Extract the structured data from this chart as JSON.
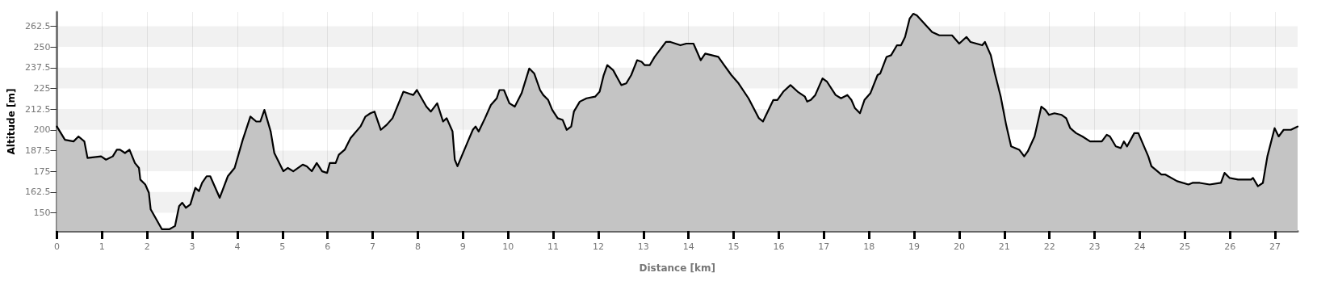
{
  "chart_data": {
    "type": "area",
    "xlabel": "Distance [km]",
    "ylabel": "Altitude [m]",
    "color": "#000000",
    "x": [
      0,
      0.18,
      0.37,
      0.48,
      0.61,
      0.68,
      0.98,
      1.09,
      1.24,
      1.33,
      1.4,
      1.51,
      1.61,
      1.73,
      1.82,
      1.85,
      1.96,
      2.04,
      2.08,
      2.33,
      2.49,
      2.62,
      2.71,
      2.78,
      2.86,
      2.96,
      3.07,
      3.15,
      3.22,
      3.32,
      3.4,
      3.61,
      3.79,
      3.94,
      4.12,
      4.29,
      4.42,
      4.51,
      4.6,
      4.74,
      4.82,
      5.02,
      5.12,
      5.24,
      5.45,
      5.54,
      5.65,
      5.76,
      5.88,
      5.99,
      6.05,
      6.18,
      6.25,
      6.38,
      6.51,
      6.73,
      6.84,
      6.95,
      7.04,
      7.18,
      7.31,
      7.44,
      7.53,
      7.68,
      7.9,
      7.98,
      8.19,
      8.29,
      8.43,
      8.56,
      8.64,
      8.77,
      8.82,
      8.88,
      9.11,
      9.22,
      9.28,
      9.35,
      9.49,
      9.62,
      9.75,
      9.81,
      9.91,
      10.03,
      10.15,
      10.3,
      10.47,
      10.58,
      10.71,
      10.78,
      10.89,
      10.98,
      11.1,
      11.21,
      11.3,
      11.4,
      11.46,
      11.59,
      11.74,
      11.93,
      12.03,
      12.12,
      12.2,
      12.33,
      12.51,
      12.62,
      12.73,
      12.86,
      12.96,
      13.03,
      13.14,
      13.25,
      13.5,
      13.6,
      13.82,
      13.95,
      14.11,
      14.27,
      14.37,
      14.66,
      14.79,
      14.95,
      15.11,
      15.33,
      15.56,
      15.65,
      15.88,
      15.97,
      16.1,
      16.26,
      16.42,
      16.58,
      16.63,
      16.71,
      16.81,
      16.97,
      17.07,
      17.26,
      17.38,
      17.52,
      17.61,
      17.69,
      17.8,
      17.9,
      18.03,
      18.19,
      18.25,
      18.39,
      18.49,
      18.62,
      18.71,
      18.8,
      18.9,
      18.98,
      19.06,
      19.4,
      19.56,
      19.84,
      20,
      20.16,
      20.25,
      20.51,
      20.57,
      20.7,
      20.79,
      20.92,
      21.04,
      21.15,
      21.33,
      21.44,
      21.52,
      21.67,
      21.82,
      21.91,
      21.99,
      22.11,
      22.27,
      22.37,
      22.46,
      22.59,
      22.73,
      22.9,
      23.09,
      23.16,
      23.27,
      23.34,
      23.47,
      23.58,
      23.65,
      23.72,
      23.88,
      23.97,
      24.19,
      24.26,
      24.48,
      24.57,
      24.83,
      25.08,
      25.17,
      25.33,
      25.55,
      25.8,
      25.88,
      25.99,
      26.18,
      26.47,
      26.51,
      26.62,
      26.73,
      26.83,
      26.99,
      27.08,
      27.19,
      27.35,
      27.5
    ],
    "values": [
      202,
      194,
      193,
      196,
      193,
      183,
      184,
      182,
      184,
      188,
      188,
      186,
      188,
      180,
      177,
      170,
      167,
      162,
      152,
      140,
      140,
      142,
      154,
      156,
      153,
      155,
      165,
      163,
      168,
      172,
      172,
      159,
      172,
      177,
      194,
      208,
      205,
      205,
      212,
      199,
      186,
      175,
      177,
      175,
      179,
      178,
      175,
      180,
      175,
      174,
      180,
      180,
      185,
      188,
      195,
      202,
      208,
      210,
      211,
      200,
      203,
      207,
      213,
      223,
      221,
      224,
      214,
      211,
      216,
      205,
      207,
      199,
      182,
      178,
      193,
      200,
      202,
      199,
      207,
      215,
      219,
      224,
      224,
      216,
      214,
      222,
      237,
      234,
      224,
      221,
      218,
      212,
      207,
      206,
      200,
      202,
      211,
      217,
      219,
      220,
      223,
      233,
      239,
      236,
      227,
      228,
      233,
      242,
      241,
      239,
      239,
      244,
      253,
      253,
      251,
      252,
      252,
      242,
      246,
      244,
      239,
      233,
      228,
      219,
      207,
      205,
      218,
      218,
      223,
      227,
      223,
      220,
      217,
      218,
      221,
      231,
      229,
      221,
      219,
      221,
      218,
      213,
      210,
      218,
      222,
      233,
      234,
      244,
      245,
      251,
      251,
      256,
      267,
      270,
      269,
      259,
      257,
      257,
      252,
      256,
      253,
      251,
      253,
      245,
      234,
      220,
      203,
      190,
      188,
      184,
      187,
      196,
      214,
      212,
      209,
      210,
      209,
      207,
      201,
      198,
      196,
      193,
      193,
      193,
      197,
      196,
      190,
      189,
      193,
      190,
      198,
      198,
      184,
      178,
      173,
      173,
      169,
      167,
      168,
      168,
      167,
      168,
      174,
      171,
      170,
      170,
      171,
      166,
      168,
      184,
      201,
      196,
      200,
      200,
      202
    ],
    "xlim": [
      0,
      27.5
    ],
    "xticks": [
      0,
      1,
      2,
      3,
      4,
      5,
      6,
      7,
      8,
      9,
      10,
      11,
      12,
      13,
      14,
      15,
      16,
      17,
      18,
      19,
      20,
      21,
      22,
      23,
      24,
      25,
      26,
      27
    ],
    "ylim": [
      139,
      271
    ],
    "yticks": [
      150,
      162.5,
      175,
      187.5,
      200,
      212.5,
      225,
      237.5,
      250,
      262.5
    ],
    "grid": true,
    "marker": "none",
    "line_style": "solid"
  }
}
